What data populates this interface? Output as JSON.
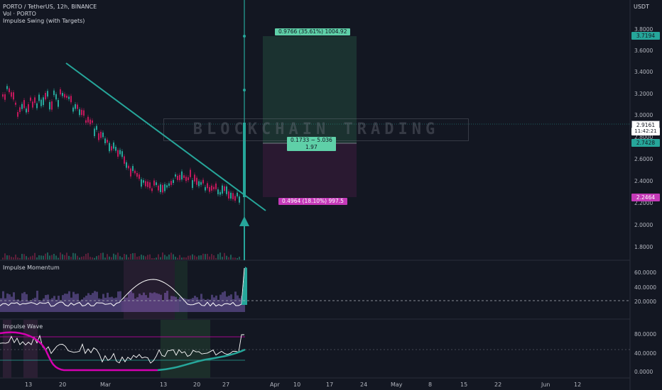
{
  "legend": {
    "symbol_line": "PORTO / TetherUS, 12h, BINANCE",
    "volume_line": "Vol · PORTO",
    "indicator_line": "Impulse Swing (with Targets)",
    "momentum_title": "Impulse Momentum",
    "wave_title": "Impulse Wave"
  },
  "watermark": "BLOCKCHAIN TRADING",
  "price_axis": {
    "unit": "USDT",
    "ticks": [
      "3.8000",
      "3.6000",
      "3.4000",
      "3.2000",
      "3.0000",
      "2.8000",
      "2.6000",
      "2.4000",
      "2.2000",
      "2.0000",
      "1.8000"
    ],
    "tags": {
      "target_high": "3.7194",
      "last_price": "2.9161",
      "countdown": "11:42:21",
      "entry": "2.7428",
      "stop": "2.2464"
    }
  },
  "momentum_axis": {
    "ticks": [
      "60.0000",
      "40.0000",
      "20.0000"
    ]
  },
  "wave_axis": {
    "ticks": [
      "80.0000",
      "40.0000",
      "0.0000"
    ]
  },
  "date_axis": [
    "13",
    "20",
    "Mar",
    "13",
    "20",
    "27",
    "Apr",
    "10",
    "17",
    "24",
    "May",
    "8",
    "15",
    "22",
    "Jun",
    "12"
  ],
  "position": {
    "profit_label": "0.9766 (35.61%) 1004.92",
    "entry_label_1": "0.1733 ~ 5.036",
    "entry_label_2": "1.97",
    "loss_label": "0.4964 (18.10%) 997.5"
  },
  "colors": {
    "background": "#131722",
    "bull": "#26a69a",
    "bear": "#c2185b",
    "teal_line": "#26a69a",
    "magenta": "#d500b0",
    "profit_zone": "#1e3a34",
    "loss_zone": "#2e1a33"
  }
}
